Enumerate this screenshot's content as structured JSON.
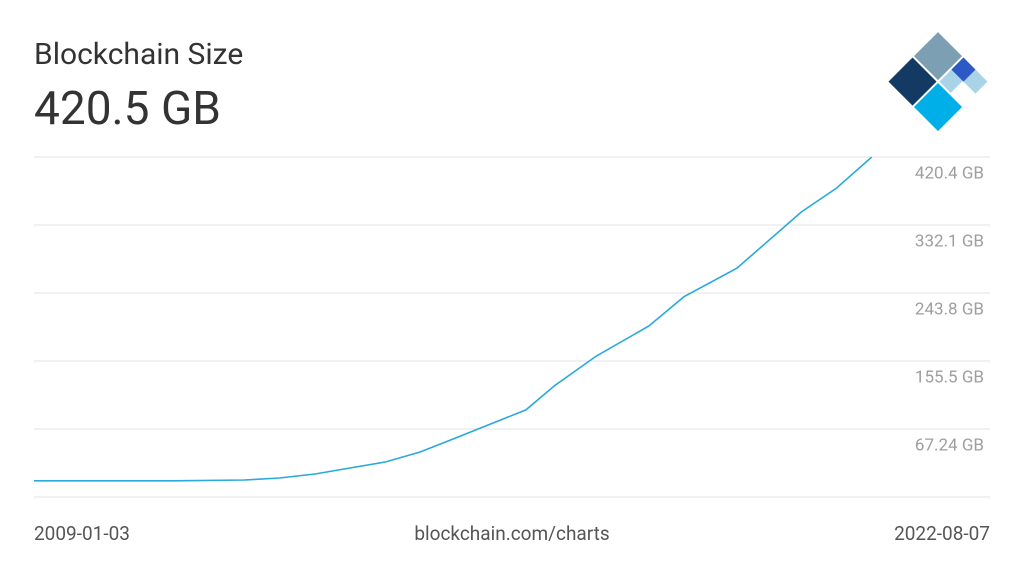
{
  "chart_data": {
    "type": "line",
    "title": "Blockchain Size",
    "subtitle": "420.5 GB",
    "source": "blockchain.com/charts",
    "x": [
      "2009-01-03",
      "2011-01-01",
      "2012-01-01",
      "2012-07-01",
      "2013-01-01",
      "2013-06-01",
      "2014-01-01",
      "2014-07-01",
      "2015-01-01",
      "2016-01-01",
      "2016-06-01",
      "2017-01-01",
      "2017-10-01",
      "2018-04-01",
      "2019-01-01",
      "2019-12-01",
      "2020-06-01",
      "2020-12-01"
    ],
    "series": [
      {
        "name": "Blockchain Size",
        "color": "#29a9dc",
        "values": [
          0,
          0,
          1,
          3.6,
          8.8,
          15.3,
          24.4,
          37.4,
          55.6,
          92,
          124,
          162,
          201,
          239,
          276,
          349,
          380,
          420.5
        ]
      }
    ],
    "xlim": [
      "2009-01-03",
      "2022-08-07"
    ],
    "ylim": [
      -21.06,
      420.44
    ],
    "yticks": [
      {
        "value": 67.24,
        "label": "67.24 GB"
      },
      {
        "value": 155.5,
        "label": "155.5 GB"
      },
      {
        "value": 243.8,
        "label": "243.8 GB"
      },
      {
        "value": 332.1,
        "label": "332.1 GB"
      },
      {
        "value": 420.4,
        "label": "420.4 GB"
      }
    ],
    "grid": true
  }
}
